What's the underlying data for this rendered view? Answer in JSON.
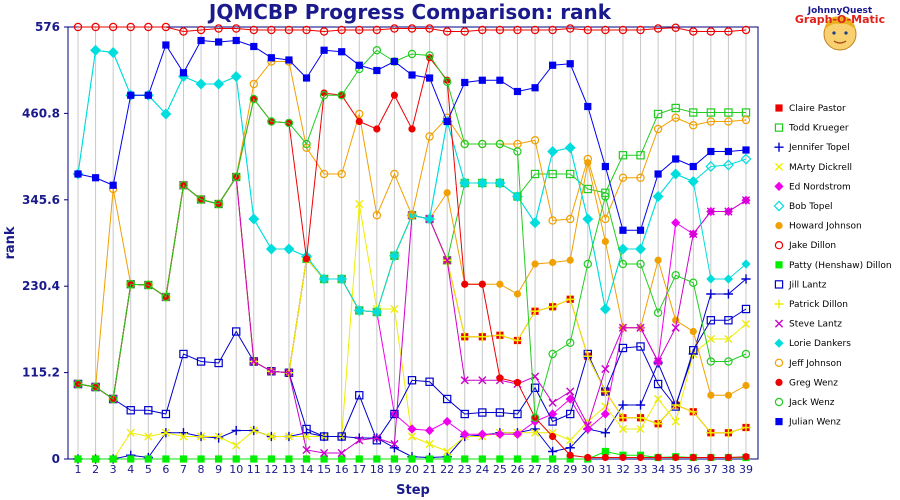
{
  "chart_data": {
    "type": "line",
    "title": "JQMCBP Progress Comparison: rank",
    "xlabel": "Step",
    "ylabel": "rank",
    "xlim": [
      1,
      39
    ],
    "ylim": [
      0,
      576
    ],
    "yticks": [
      0,
      115.2,
      230.4,
      345.6,
      460.8,
      576
    ],
    "grid": "vertical",
    "legend_position": "right",
    "logo": {
      "line1": "JohnnyQuest",
      "line2": "Graph-O-Matic"
    },
    "x": [
      1,
      2,
      3,
      4,
      5,
      6,
      7,
      8,
      9,
      10,
      11,
      12,
      13,
      14,
      15,
      16,
      17,
      18,
      19,
      20,
      21,
      22,
      23,
      24,
      25,
      26,
      27,
      28,
      29,
      30,
      31,
      32,
      33,
      34,
      35,
      36,
      37,
      38,
      39
    ],
    "series": [
      {
        "name": "Claire Pastor",
        "color": "#ee0000",
        "marker": "square",
        "values": [
          100,
          96,
          80,
          233,
          232,
          216,
          365,
          346,
          340,
          376,
          130,
          117,
          115,
          267,
          240,
          240,
          198,
          196,
          271,
          325,
          320,
          265,
          163,
          163,
          165,
          158,
          197,
          203,
          213,
          137,
          90,
          55,
          55,
          47,
          72,
          63,
          35,
          35,
          42
        ]
      },
      {
        "name": "Todd Krueger",
        "color": "#22cc22",
        "marker": "square-open",
        "values": [
          100,
          96,
          80,
          233,
          232,
          216,
          365,
          346,
          340,
          376,
          130,
          117,
          115,
          267,
          240,
          240,
          198,
          196,
          271,
          325,
          320,
          265,
          368,
          368,
          368,
          350,
          380,
          380,
          380,
          360,
          355,
          405,
          405,
          460,
          468,
          462,
          462,
          462,
          462
        ]
      },
      {
        "name": "Jennifer Topel",
        "color": "#0000cc",
        "marker": "plus",
        "values": [
          0,
          0,
          0,
          5,
          2,
          35,
          35,
          30,
          28,
          38,
          38,
          30,
          30,
          35,
          30,
          30,
          28,
          28,
          15,
          3,
          2,
          3,
          30,
          32,
          35,
          35,
          40,
          10,
          15,
          40,
          35,
          72,
          72,
          128,
          72,
          140,
          220,
          220,
          240
        ]
      },
      {
        "name": "MArty Dickrell",
        "color": "#eeee00",
        "marker": "x",
        "values": [
          0,
          0,
          0,
          35,
          30,
          35,
          30,
          30,
          30,
          18,
          38,
          30,
          30,
          30,
          30,
          30,
          340,
          200,
          200,
          30,
          20,
          10,
          30,
          30,
          35,
          35,
          35,
          35,
          25,
          50,
          70,
          40,
          40,
          80,
          50,
          140,
          160,
          160,
          180
        ]
      },
      {
        "name": "Ed Nordstrom",
        "color": "#ee00ee",
        "marker": "diamond",
        "values": [
          100,
          96,
          80,
          233,
          232,
          216,
          365,
          346,
          340,
          376,
          130,
          117,
          115,
          267,
          240,
          240,
          198,
          196,
          60,
          40,
          38,
          50,
          33,
          33,
          33,
          33,
          50,
          60,
          80,
          40,
          60,
          175,
          175,
          130,
          315,
          300,
          330,
          330,
          345
        ]
      },
      {
        "name": "Bob Topel",
        "color": "#00dddd",
        "marker": "diamond-open",
        "values": [
          380,
          545,
          542,
          485,
          485,
          460,
          510,
          500,
          500,
          510,
          320,
          280,
          280,
          270,
          240,
          240,
          198,
          196,
          271,
          325,
          320,
          450,
          368,
          368,
          368,
          350,
          315,
          410,
          415,
          320,
          200,
          280,
          280,
          350,
          380,
          370,
          390,
          392,
          400
        ]
      },
      {
        "name": "Howard Johnson",
        "color": "#f0a000",
        "marker": "circle",
        "values": [
          100,
          96,
          80,
          233,
          232,
          216,
          365,
          346,
          340,
          376,
          130,
          117,
          115,
          267,
          240,
          240,
          198,
          196,
          271,
          325,
          320,
          355,
          233,
          233,
          233,
          220,
          260,
          262,
          265,
          395,
          290,
          175,
          175,
          265,
          185,
          170,
          85,
          85,
          98
        ]
      },
      {
        "name": "Jake Dillon",
        "color": "#ee0000",
        "marker": "circle-open",
        "values": [
          576,
          576,
          576,
          576,
          576,
          576,
          570,
          572,
          574,
          574,
          572,
          572,
          572,
          572,
          570,
          572,
          572,
          572,
          574,
          574,
          574,
          570,
          570,
          572,
          572,
          572,
          572,
          572,
          574,
          572,
          572,
          572,
          572,
          574,
          575,
          570,
          570,
          570,
          572
        ]
      },
      {
        "name": "Patty (Henshaw) Dillon",
        "color": "#00ee00",
        "marker": "square",
        "values": [
          0,
          0,
          0,
          0,
          0,
          0,
          0,
          0,
          0,
          0,
          0,
          0,
          0,
          0,
          0,
          0,
          0,
          0,
          0,
          0,
          0,
          0,
          0,
          0,
          0,
          0,
          0,
          0,
          0,
          0,
          10,
          5,
          5,
          2,
          3,
          2,
          2,
          2,
          2
        ]
      },
      {
        "name": "Jill Lantz",
        "color": "#0000cc",
        "marker": "square-open",
        "values": [
          100,
          96,
          80,
          65,
          65,
          60,
          140,
          130,
          128,
          170,
          130,
          117,
          115,
          40,
          30,
          30,
          85,
          25,
          60,
          105,
          103,
          80,
          60,
          62,
          62,
          60,
          95,
          50,
          60,
          140,
          90,
          148,
          150,
          100,
          70,
          145,
          185,
          185,
          200
        ]
      },
      {
        "name": "Patrick Dillon",
        "color": "#eeee00",
        "marker": "plus",
        "values": [
          100,
          96,
          80,
          233,
          232,
          216,
          365,
          346,
          340,
          376,
          130,
          117,
          115,
          267,
          240,
          240,
          198,
          196,
          271,
          325,
          320,
          265,
          163,
          163,
          165,
          158,
          197,
          203,
          213,
          137,
          90,
          55,
          55,
          47,
          72,
          63,
          35,
          35,
          42
        ]
      },
      {
        "name": "Steve Lantz",
        "color": "#cc00cc",
        "marker": "x",
        "values": [
          100,
          96,
          80,
          233,
          232,
          216,
          365,
          346,
          340,
          376,
          130,
          117,
          115,
          12,
          8,
          8,
          25,
          28,
          20,
          325,
          320,
          265,
          105,
          105,
          105,
          100,
          110,
          75,
          90,
          45,
          120,
          175,
          175,
          130,
          175,
          300,
          330,
          330,
          345
        ]
      },
      {
        "name": "Lorie Dankers",
        "color": "#00dddd",
        "marker": "diamond",
        "values": [
          380,
          545,
          542,
          485,
          485,
          460,
          510,
          500,
          500,
          510,
          320,
          280,
          280,
          270,
          240,
          240,
          198,
          196,
          271,
          325,
          320,
          450,
          368,
          368,
          368,
          350,
          315,
          410,
          415,
          320,
          200,
          280,
          280,
          350,
          380,
          370,
          240,
          240,
          260
        ]
      },
      {
        "name": "Jeff Johnson",
        "color": "#f0a000",
        "marker": "circle-open",
        "values": [
          100,
          96,
          360,
          233,
          232,
          216,
          365,
          346,
          340,
          376,
          500,
          530,
          530,
          415,
          380,
          380,
          460,
          325,
          380,
          325,
          430,
          455,
          420,
          420,
          420,
          420,
          425,
          318,
          320,
          400,
          320,
          375,
          375,
          440,
          455,
          445,
          450,
          450,
          452
        ]
      },
      {
        "name": "Greg Wenz",
        "color": "#ee0000",
        "marker": "circle",
        "values": [
          100,
          96,
          80,
          233,
          232,
          216,
          365,
          346,
          340,
          376,
          480,
          450,
          448,
          267,
          488,
          485,
          450,
          440,
          485,
          440,
          535,
          505,
          233,
          233,
          108,
          102,
          55,
          30,
          5,
          2,
          2,
          2,
          2,
          2,
          2,
          2,
          2,
          2,
          3
        ]
      },
      {
        "name": "Jack Wenz",
        "color": "#22cc22",
        "marker": "circle-open",
        "values": [
          100,
          96,
          80,
          233,
          232,
          216,
          365,
          346,
          340,
          376,
          480,
          450,
          448,
          420,
          485,
          485,
          520,
          545,
          530,
          540,
          538,
          503,
          420,
          420,
          420,
          410,
          55,
          140,
          155,
          260,
          350,
          260,
          260,
          195,
          245,
          235,
          130,
          130,
          140
        ]
      },
      {
        "name": "Julian Wenz",
        "color": "#0000ee",
        "marker": "square",
        "values": [
          380,
          375,
          365,
          485,
          485,
          552,
          515,
          558,
          556,
          558,
          550,
          535,
          532,
          508,
          545,
          543,
          525,
          518,
          530,
          512,
          508,
          450,
          502,
          505,
          505,
          490,
          495,
          525,
          527,
          470,
          390,
          305,
          305,
          380,
          400,
          390,
          410,
          410,
          412
        ]
      }
    ]
  }
}
